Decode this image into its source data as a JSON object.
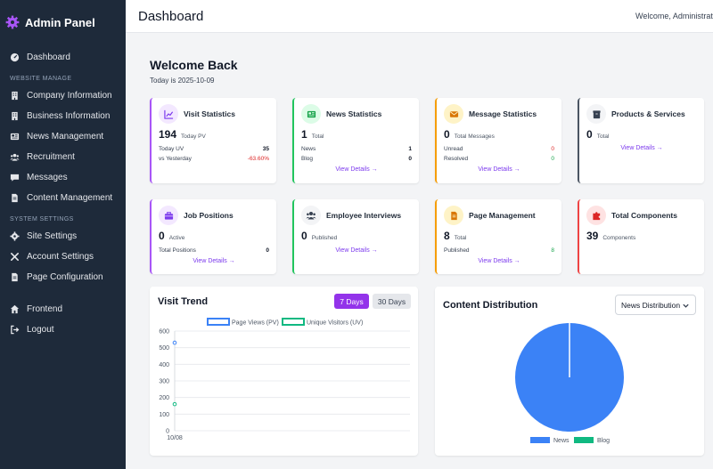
{
  "sidebar": {
    "brand": "Admin Panel",
    "dashboard": "Dashboard",
    "section_website": "WEBSITE MANAGE",
    "items_website": [
      "Company Information",
      "Business Information",
      "News Management",
      "Recruitment",
      "Messages",
      "Content Management"
    ],
    "section_system": "SYSTEM SETTINGS",
    "items_system": [
      "Site Settings",
      "Account Settings",
      "Page Configuration"
    ],
    "frontend": "Frontend",
    "logout": "Logout"
  },
  "header": {
    "title": "Dashboard",
    "welcome": "Welcome, Administrator"
  },
  "welcome": {
    "title": "Welcome Back",
    "date": "Today is 2025-10-09"
  },
  "cards": {
    "visit": {
      "title": "Visit Statistics",
      "num": "194",
      "sub": "Today PV",
      "r1_label": "Today UV",
      "r1_value": "35",
      "r2_label": "vs Yesterday",
      "r2_value": "-63.60%",
      "accent": "#a855f7"
    },
    "news": {
      "title": "News Statistics",
      "num": "1",
      "sub": "Total",
      "r1_label": "News",
      "r1_value": "1",
      "r2_label": "Blog",
      "r2_value": "0",
      "link": "View Details →",
      "accent": "#22c55e"
    },
    "message": {
      "title": "Message Statistics",
      "num": "0",
      "sub": "Total Messages",
      "r1_label": "Unread",
      "r1_value": "0",
      "r2_label": "Resolved",
      "r2_value": "0",
      "link": "View Details →",
      "accent": "#f59e0b"
    },
    "products": {
      "title": "Products & Services",
      "num": "0",
      "sub": "Total",
      "link": "View Details →",
      "accent": "#4b5563"
    },
    "jobs": {
      "title": "Job Positions",
      "num": "0",
      "sub": "Active",
      "r1_label": "Total Positions",
      "r1_value": "0",
      "link": "View Details →",
      "accent": "#a855f7"
    },
    "interviews": {
      "title": "Employee Interviews",
      "num": "0",
      "sub": "Published",
      "link": "View Details →",
      "accent": "#22c55e"
    },
    "pages": {
      "title": "Page Management",
      "num": "8",
      "sub": "Total",
      "r1_label": "Published",
      "r1_value": "8",
      "link": "View Details →",
      "accent": "#f59e0b"
    },
    "components": {
      "title": "Total Components",
      "num": "39",
      "sub": "Components",
      "accent": "#ef4444"
    }
  },
  "visit_trend": {
    "title": "Visit Trend",
    "tab_7": "7 Days",
    "tab_30": "30 Days",
    "chart_data": {
      "type": "line",
      "x": [
        "10/08"
      ],
      "series": [
        {
          "name": "Page Views (PV)",
          "values": [
            530
          ],
          "color": "#3b82f6"
        },
        {
          "name": "Unique Visitors (UV)",
          "values": [
            160
          ],
          "color": "#10b981"
        }
      ],
      "yticks": [
        "0",
        "100",
        "200",
        "300",
        "400",
        "500",
        "600"
      ],
      "ylim": [
        0,
        600
      ]
    }
  },
  "distribution": {
    "title": "Content Distribution",
    "select_value": "News Distribution",
    "chart_data": {
      "type": "pie",
      "categories": [
        "News",
        "Blog"
      ],
      "values": [
        1,
        0
      ],
      "colors": [
        "#3b82f6",
        "#10b981"
      ]
    }
  }
}
